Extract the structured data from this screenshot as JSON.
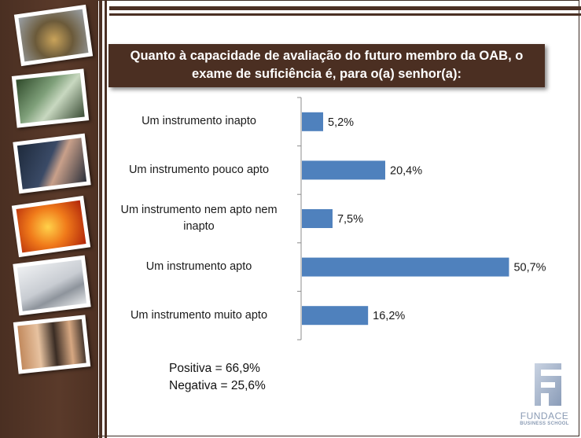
{
  "title": "Quanto à capacidade de avaliação do futuro membro da OAB, o exame de suficiência é, para o(a) senhor(a):",
  "summary": {
    "positive": "Positiva = 66,9%",
    "negative": "Negativa = 25,6%"
  },
  "logo": {
    "name": "FUNDACE",
    "sub": "BUSINESS SCHOOL"
  },
  "colors": {
    "bar": "#4f81bd",
    "brown": "#4b2f22"
  },
  "sidebar_photos": [
    "scales-of-justice-photo",
    "office-meeting-photo",
    "handcuffs-photo",
    "gavel-photo",
    "pen-document-photo",
    "business-team-photo"
  ],
  "chart_data": {
    "type": "bar",
    "orientation": "horizontal",
    "categories": [
      "Um instrumento inapto",
      "Um instrumento pouco apto",
      "Um instrumento nem apto nem inapto",
      "Um instrumento apto",
      "Um instrumento muito apto"
    ],
    "category_lines": [
      [
        "Um instrumento inapto"
      ],
      [
        "Um instrumento pouco apto"
      ],
      [
        "Um instrumento nem apto nem",
        "inapto"
      ],
      [
        "Um instrumento apto"
      ],
      [
        "Um instrumento muito apto"
      ]
    ],
    "values": [
      5.2,
      20.4,
      7.5,
      50.7,
      16.2
    ],
    "value_labels": [
      "5,2%",
      "20,4%",
      "7,5%",
      "50,7%",
      "16,2%"
    ],
    "xlim": [
      0,
      51
    ],
    "grid": false,
    "legend": "none"
  }
}
